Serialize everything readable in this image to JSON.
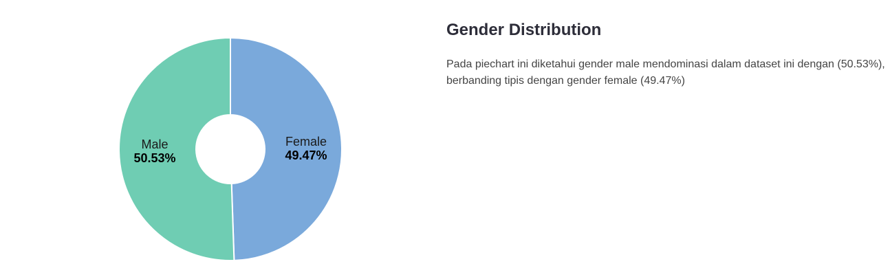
{
  "panel": {
    "title": "Gender Distribution",
    "description": "Pada piechart ini diketahui gender male mendominasi dalam dataset ini dengan (50.53%), berbanding tipis dengan gender female (49.47%)"
  },
  "chart_data": {
    "type": "pie",
    "donut": true,
    "start_angle_deg": 0,
    "direction": "clockwise",
    "slices": [
      {
        "label": "Female",
        "value": 49.47,
        "display": "49.47%",
        "color": "#7aa9db"
      },
      {
        "label": "Male",
        "value": 50.53,
        "display": "50.53%",
        "color": "#6fcdb3"
      }
    ],
    "slice_border_color": "#ffffff",
    "title": "",
    "legend": "none"
  }
}
